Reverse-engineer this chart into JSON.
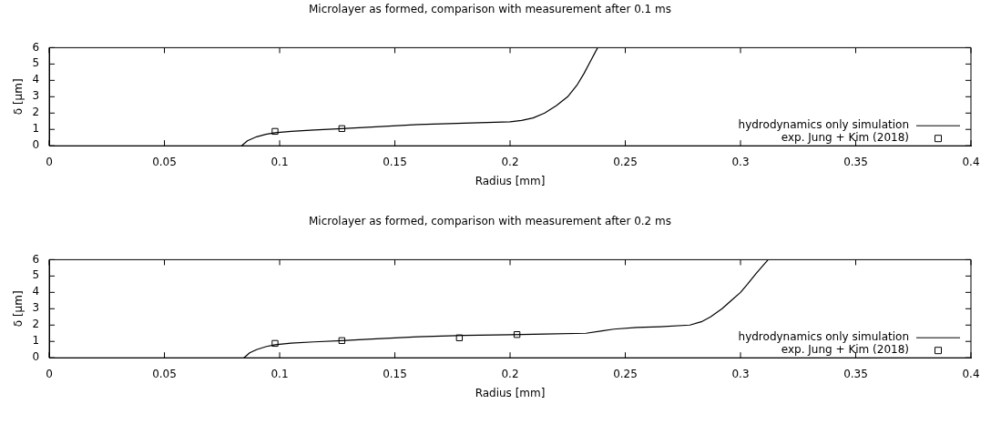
{
  "chart_data": [
    {
      "type": "line",
      "title": "Microlayer as formed, comparison with measurement after 0.1 ms",
      "xlabel": "Radius [mm]",
      "ylabel": "δ [µm]",
      "xlim": [
        0,
        0.4
      ],
      "xticks": [
        0,
        0.05,
        0.1,
        0.15,
        0.2,
        0.25,
        0.3,
        0.35,
        0.4
      ],
      "ylim": [
        0,
        6
      ],
      "yticks": [
        0,
        1,
        2,
        3,
        4,
        5,
        6
      ],
      "grid": false,
      "legend": "bottom right",
      "series": [
        {
          "name": "hydrodynamics only simulation",
          "color": "#000000",
          "marker": "none",
          "x": [
            0.0835,
            0.086,
            0.09,
            0.094,
            0.098,
            0.105,
            0.115,
            0.127,
            0.14,
            0.16,
            0.18,
            0.2,
            0.205,
            0.21,
            0.215,
            0.22,
            0.225,
            0.229,
            0.232,
            0.235,
            0.238
          ],
          "values": [
            0,
            0.3,
            0.55,
            0.7,
            0.8,
            0.88,
            0.96,
            1.05,
            1.15,
            1.3,
            1.38,
            1.47,
            1.55,
            1.7,
            2.0,
            2.45,
            3.0,
            3.7,
            4.4,
            5.2,
            6
          ]
        },
        {
          "name": "exp. Jung + Kim (2018)",
          "type": "scatter",
          "color": "#000000",
          "marker": "square",
          "x": [
            0.098,
            0.127
          ],
          "values": [
            0.88,
            1.05
          ]
        }
      ]
    },
    {
      "type": "line",
      "title": "Microlayer as formed, comparison with measurement after 0.2 ms",
      "xlabel": "Radius [mm]",
      "ylabel": "δ [µm]",
      "xlim": [
        0,
        0.4
      ],
      "xticks": [
        0,
        0.05,
        0.1,
        0.15,
        0.2,
        0.25,
        0.3,
        0.35,
        0.4
      ],
      "ylim": [
        0,
        6
      ],
      "yticks": [
        0,
        1,
        2,
        3,
        4,
        5,
        6
      ],
      "grid": false,
      "legend": "bottom right",
      "series": [
        {
          "name": "hydrodynamics only simulation",
          "color": "#000000",
          "marker": "none",
          "x": [
            0.0845,
            0.087,
            0.09,
            0.094,
            0.098,
            0.105,
            0.115,
            0.127,
            0.14,
            0.16,
            0.18,
            0.2,
            0.215,
            0.233,
            0.24,
            0.245,
            0.255,
            0.265,
            0.278,
            0.283,
            0.287,
            0.292,
            0.296,
            0.3,
            0.303,
            0.307,
            0.312
          ],
          "values": [
            0,
            0.3,
            0.5,
            0.68,
            0.8,
            0.9,
            0.97,
            1.05,
            1.15,
            1.28,
            1.37,
            1.41,
            1.45,
            1.5,
            1.65,
            1.75,
            1.85,
            1.9,
            2.0,
            2.2,
            2.5,
            3.0,
            3.5,
            4.0,
            4.5,
            5.2,
            6
          ]
        },
        {
          "name": "exp. Jung + Kim (2018)",
          "type": "scatter",
          "color": "#000000",
          "marker": "square",
          "x": [
            0.098,
            0.127,
            0.178,
            0.203
          ],
          "values": [
            0.88,
            1.05,
            1.22,
            1.42
          ]
        }
      ]
    }
  ]
}
